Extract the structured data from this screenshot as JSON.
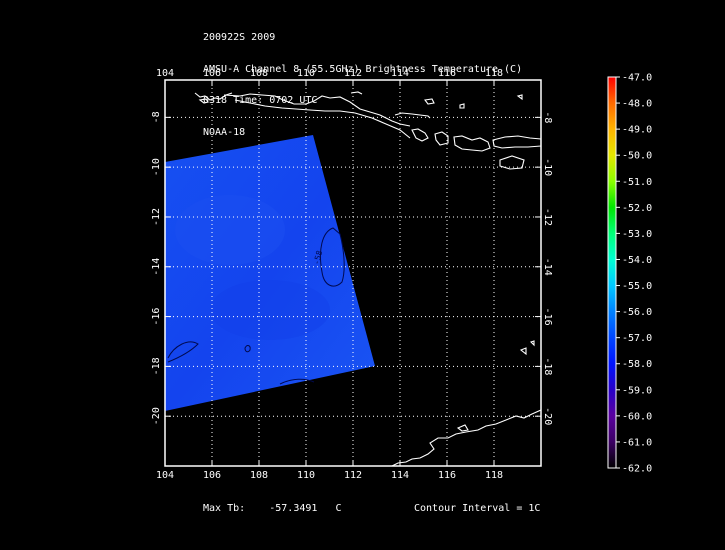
{
  "header": {
    "lines": [
      "200922S 2009",
      "AMSU-A Channel 8 (55.5GHz) Brightness Temperature (C)",
      "0318 Time: 0702 UTC",
      "NOAA-18"
    ]
  },
  "map": {
    "lon_ticks": [
      "104",
      "106",
      "108",
      "110",
      "112",
      "114",
      "116",
      "118"
    ],
    "lat_ticks": [
      "-8",
      "-10",
      "-12",
      "-14",
      "-16",
      "-18",
      "-20"
    ],
    "lon_range": [
      104,
      120
    ],
    "lat_range": [
      -6.5,
      -22
    ],
    "contour_label": "-58",
    "swath_color": "#1546f0",
    "coast_color": "#ffffff",
    "grid_color": "#ffffff"
  },
  "colorbar": {
    "labels": [
      "-47.0",
      "-48.0",
      "-49.0",
      "-50.0",
      "-51.0",
      "-52.0",
      "-53.0",
      "-54.0",
      "-55.0",
      "-56.0",
      "-57.0",
      "-58.0",
      "-59.0",
      "-60.0",
      "-61.0",
      "-62.0"
    ],
    "colors": [
      "#ff0000",
      "#ff6a00",
      "#ffb400",
      "#e6e600",
      "#8cff00",
      "#00e600",
      "#00ff78",
      "#00ffd2",
      "#00c8ff",
      "#0082ff",
      "#0046ff",
      "#0014ff",
      "#2800c8",
      "#5a00a0",
      "#3c0064",
      "#000000"
    ]
  },
  "footer": {
    "max_label": "Max Tb:",
    "max_value": "-57.3491",
    "max_unit": "C",
    "contour_label": "Contour Interval = 1C"
  }
}
